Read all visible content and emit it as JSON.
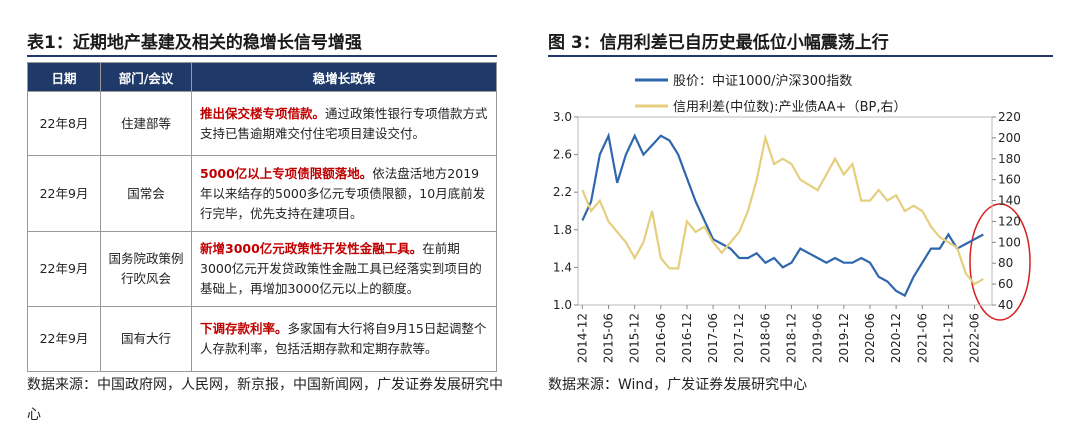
{
  "table": {
    "title": "表1：近期地产基建及相关的稳增长信号增强",
    "headers": [
      "日期",
      "部门/会议",
      "稳增长政策"
    ],
    "rows": [
      {
        "date": "22年8月",
        "dept": "住建部等",
        "lead": "推出保交楼专项借款。",
        "text": "通过政策性银行专项借款方式支持已售逾期难交付住宅项目建设交付。"
      },
      {
        "date": "22年9月",
        "dept": "国常会",
        "lead": "5000亿以上专项债限额落地。",
        "text": "依法盘活地方2019年以来结存的5000多亿元专项债限额，10月底前发行完毕，优先支持在建项目。"
      },
      {
        "date": "22年9月",
        "dept": "国务院政策例行吹风会",
        "lead": "新增3000亿元政策性开发性金融工具。",
        "text": "在前期3000亿元开发贷政策性金融工具已经落实到项目的基础上，再增加3000亿元以上的额度。"
      },
      {
        "date": "22年9月",
        "dept": "国有大行",
        "lead": "下调存款利率。",
        "text": "多家国有大行将自9月15日起调整个人存款利率，包括活期存款和定期存款等。"
      }
    ],
    "source": "数据来源：中国政府网，人民网，新京报，中国新闻网，广发证券发展研究中心"
  },
  "chart_data": {
    "type": "line",
    "title": "图 3：信用利差已自历史最低位小幅震荡上行",
    "source": "数据来源：Wind，广发证券发展研究中心",
    "x": [
      "2014-12",
      "2015-02",
      "2015-04",
      "2015-06",
      "2015-08",
      "2015-10",
      "2015-12",
      "2016-02",
      "2016-04",
      "2016-06",
      "2016-08",
      "2016-10",
      "2016-12",
      "2017-02",
      "2017-04",
      "2017-06",
      "2017-08",
      "2017-10",
      "2017-12",
      "2018-02",
      "2018-04",
      "2018-06",
      "2018-08",
      "2018-10",
      "2018-12",
      "2019-02",
      "2019-04",
      "2019-06",
      "2019-08",
      "2019-10",
      "2019-12",
      "2020-02",
      "2020-04",
      "2020-06",
      "2020-08",
      "2020-10",
      "2020-12",
      "2021-02",
      "2021-04",
      "2021-06",
      "2021-08",
      "2021-10",
      "2021-12",
      "2022-02",
      "2022-04",
      "2022-06",
      "2022-08"
    ],
    "series": [
      {
        "name": "股价：中证1000/沪深300指数",
        "color": "#2e67ad",
        "axis": "y",
        "values": [
          1.9,
          2.1,
          2.6,
          2.8,
          2.3,
          2.6,
          2.8,
          2.6,
          2.7,
          2.8,
          2.75,
          2.6,
          2.35,
          2.1,
          1.9,
          1.7,
          1.65,
          1.6,
          1.5,
          1.5,
          1.55,
          1.45,
          1.5,
          1.4,
          1.45,
          1.6,
          1.55,
          1.5,
          1.45,
          1.5,
          1.45,
          1.45,
          1.5,
          1.45,
          1.3,
          1.25,
          1.15,
          1.1,
          1.3,
          1.45,
          1.6,
          1.6,
          1.75,
          1.6,
          1.65,
          1.7,
          1.75
        ]
      },
      {
        "name": "信用利差(中位数):产业债AA+（BP,右）",
        "color": "#e5cf7f",
        "axis": "y2",
        "values": [
          150,
          130,
          140,
          120,
          110,
          100,
          85,
          100,
          130,
          85,
          75,
          75,
          120,
          110,
          115,
          100,
          90,
          100,
          110,
          130,
          160,
          200,
          175,
          180,
          175,
          160,
          155,
          150,
          165,
          180,
          165,
          175,
          140,
          140,
          150,
          140,
          145,
          130,
          135,
          130,
          115,
          105,
          100,
          95,
          70,
          60,
          65
        ]
      }
    ],
    "xticks": [
      "2014-12",
      "2015-06",
      "2015-12",
      "2016-06",
      "2016-12",
      "2017-06",
      "2017-12",
      "2018-06",
      "2018-12",
      "2019-06",
      "2019-12",
      "2020-06",
      "2020-12",
      "2021-06",
      "2021-12",
      "2022-06"
    ],
    "ylim": [
      1,
      3
    ],
    "yticks": [
      {
        "value": 1,
        "label": "1.0"
      },
      1.4,
      1.8,
      2.2,
      2.6,
      {
        "value": 3,
        "label": "3.0"
      }
    ],
    "y2lim": [
      40,
      220
    ],
    "y2ticks": [
      40,
      60,
      80,
      100,
      120,
      140,
      160,
      180,
      200,
      220
    ]
  }
}
